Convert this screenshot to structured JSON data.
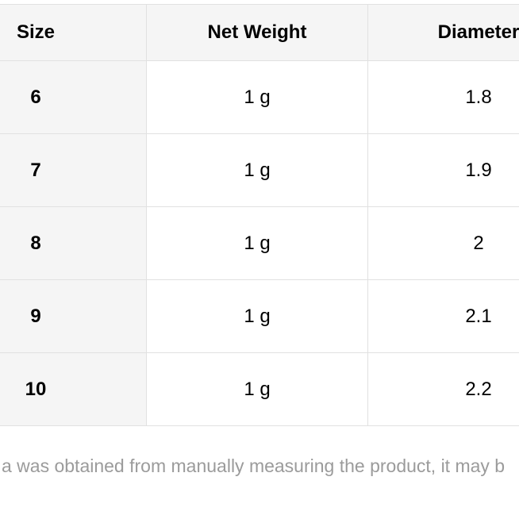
{
  "table": {
    "title": "size-chart",
    "columns": [
      {
        "key": "size",
        "label": "Size"
      },
      {
        "key": "net_weight",
        "label": "Net Weight"
      },
      {
        "key": "diameter",
        "label": "Diameter"
      }
    ],
    "rows": [
      {
        "size": "6",
        "net_weight": "1 g",
        "diameter": "1.8"
      },
      {
        "size": "7",
        "net_weight": "1 g",
        "diameter": "1.9"
      },
      {
        "size": "8",
        "net_weight": "1 g",
        "diameter": "2"
      },
      {
        "size": "9",
        "net_weight": "1 g",
        "diameter": "2.1"
      },
      {
        "size": "10",
        "net_weight": "1 g",
        "diameter": "2.2"
      }
    ]
  },
  "note": {
    "visible_text": "a was obtained from manually measuring the product, it may b"
  },
  "colors": {
    "header_background": "#f5f5f5",
    "row_header_background": "#f5f5f5",
    "cell_background": "#ffffff",
    "border": "#e1e1e1",
    "table_text": "#000000",
    "note_text": "#9b9b9b"
  }
}
